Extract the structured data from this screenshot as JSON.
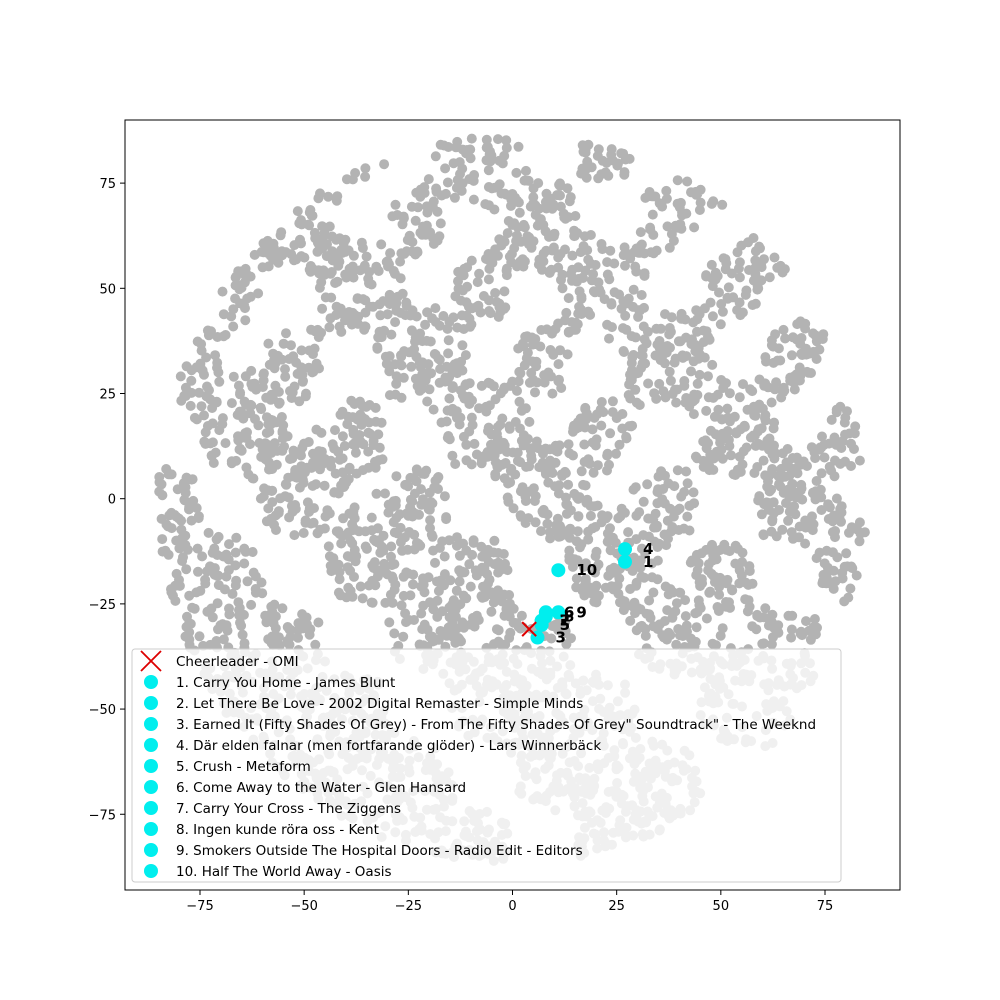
{
  "chart_data": {
    "type": "scatter",
    "title": "",
    "xlabel": "",
    "ylabel": "",
    "xlim": [
      -93,
      93
    ],
    "ylim": [
      -93,
      90
    ],
    "x_ticks": [
      -75,
      -50,
      -25,
      0,
      25,
      50,
      75
    ],
    "y_ticks": [
      -75,
      -50,
      -25,
      0,
      25,
      50,
      75
    ],
    "grid": false,
    "legend_placement": "lower-left",
    "colors": {
      "background_points": "#808080",
      "query": "#dd0000",
      "recommendations": "#00eeee"
    },
    "query": {
      "label": "Cheerleader - OMI",
      "x": 4,
      "y": -31,
      "marker": "x"
    },
    "recommendations": [
      {
        "rank": "1",
        "label": "1. Carry You Home - James Blunt",
        "x": 27,
        "y": -15
      },
      {
        "rank": "2",
        "label": "2. Let There Be Love - 2002 Digital Remaster - Simple Minds",
        "x": 7,
        "y": -29
      },
      {
        "rank": "3",
        "label": "3. Earned It (Fifty Shades Of Grey) - From The Fifty Shades Of Grey\" Soundtrack\" - The Weeknd",
        "x": 6,
        "y": -33
      },
      {
        "rank": "4",
        "label": "4. Där elden falnar (men fortfarande glöder) - Lars Winnerbäck",
        "x": 27,
        "y": -12
      },
      {
        "rank": "5",
        "label": "5. Crush - Metaform",
        "x": 7,
        "y": -30
      },
      {
        "rank": "6",
        "label": "6. Come Away to the Water - Glen Hansard",
        "x": 8,
        "y": -27
      },
      {
        "rank": "7",
        "label": "7. Carry Your Cross - The Ziggens",
        "x": 7,
        "y": -29
      },
      {
        "rank": "8",
        "label": "8. Ingen kunde röra oss - Kent",
        "x": 8,
        "y": -28
      },
      {
        "rank": "9",
        "label": "9. Smokers Outside The Hospital Doors - Radio Edit - Editors",
        "x": 11,
        "y": -27
      },
      {
        "rank": "10",
        "label": "10. Half The World Away - Oasis",
        "x": 11,
        "y": -17
      }
    ]
  }
}
